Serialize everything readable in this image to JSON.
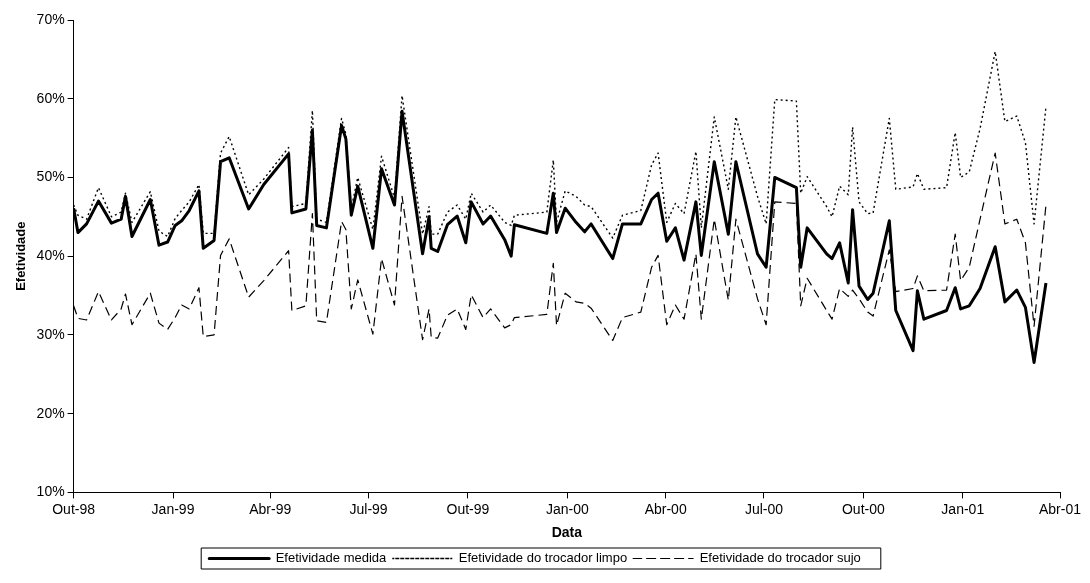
{
  "chart_data": {
    "type": "line",
    "xlabel": "Data",
    "ylabel": "Efetividade",
    "x": [
      "1998-10-01",
      "1998-10-05",
      "1998-10-13",
      "1998-10-24",
      "1998-11-05",
      "1998-11-14",
      "1998-11-18",
      "1998-11-24",
      "1998-12-11",
      "1998-12-19",
      "1998-12-27",
      "1999-01-03",
      "1999-01-09",
      "1999-01-16",
      "1999-01-25",
      "1999-01-29",
      "1999-02-08",
      "1999-02-14",
      "1999-02-22",
      "1999-03-12",
      "1999-03-26",
      "1999-04-18",
      "1999-04-21",
      "1999-05-04",
      "1999-05-10",
      "1999-05-14",
      "1999-05-23",
      "1999-06-06",
      "1999-06-10",
      "1999-06-15",
      "1999-06-21",
      "1999-07-05",
      "1999-07-13",
      "1999-07-25",
      "1999-08-01",
      "1999-08-20",
      "1999-08-26",
      "1999-08-28",
      "1999-09-03",
      "1999-09-12",
      "1999-09-21",
      "1999-09-29",
      "1999-10-04",
      "1999-10-15",
      "1999-10-22",
      "1999-11-04",
      "1999-11-10",
      "1999-11-13",
      "1999-12-13",
      "1999-12-19",
      "1999-12-22",
      "1999-12-30",
      "2000-01-09",
      "2000-01-17",
      "2000-01-23",
      "2000-02-12",
      "2000-02-21",
      "2000-03-09",
      "2000-03-19",
      "2000-03-25",
      "2000-04-02",
      "2000-04-10",
      "2000-04-18",
      "2000-04-29",
      "2000-05-04",
      "2000-05-16",
      "2000-05-29",
      "2000-06-05",
      "2000-06-25",
      "2000-07-03",
      "2000-07-11",
      "2000-07-31",
      "2000-08-04",
      "2000-08-10",
      "2000-08-28",
      "2000-09-02",
      "2000-09-09",
      "2000-09-17",
      "2000-09-21",
      "2000-09-27",
      "2000-10-05",
      "2000-10-10",
      "2000-10-25",
      "2000-10-31",
      "2000-11-16",
      "2000-11-20",
      "2000-11-26",
      "2000-12-17",
      "2000-12-25",
      "2000-12-30",
      "2001-01-07",
      "2001-01-17",
      "2001-01-31",
      "2001-02-09",
      "2001-02-20",
      "2001-02-28",
      "2001-03-08",
      "2001-03-19"
    ],
    "series": [
      {
        "name": "Efetividade medida",
        "color": "#000000",
        "line_style": "solid",
        "values": [
          46.1,
          43.0,
          44.1,
          47.0,
          44.2,
          44.7,
          47.6,
          42.5,
          47.2,
          41.4,
          41.8,
          43.9,
          44.5,
          45.8,
          48.3,
          41.0,
          42.0,
          52.0,
          52.5,
          46.0,
          49.1,
          53.0,
          45.5,
          46.0,
          56.0,
          43.9,
          43.6,
          56.6,
          54.9,
          45.2,
          48.9,
          41.0,
          51.1,
          46.5,
          58.4,
          40.3,
          45.0,
          41.0,
          40.6,
          44.0,
          45.1,
          41.7,
          46.9,
          44.1,
          45.1,
          42.1,
          40.0,
          44.0,
          42.9,
          48.0,
          43.0,
          46.1,
          44.3,
          43.1,
          44.1,
          39.7,
          44.1,
          44.1,
          47.2,
          48.0,
          41.9,
          43.6,
          39.5,
          46.9,
          40.1,
          52.0,
          42.8,
          52.0,
          40.3,
          38.6,
          50.0,
          48.7,
          38.6,
          43.6,
          40.3,
          39.7,
          41.7,
          36.6,
          45.9,
          36.2,
          34.5,
          35.3,
          44.5,
          33.1,
          28.0,
          35.6,
          32.0,
          33.1,
          36.0,
          33.3,
          33.7,
          35.9,
          41.2,
          34.2,
          35.7,
          33.5,
          26.5,
          36.6
        ]
      },
      {
        "name": "Efetividade do trocador limpo",
        "color": "#000000",
        "line_style": "dotted",
        "values": [
          46.5,
          45.2,
          44.7,
          48.7,
          45.0,
          45.6,
          48.0,
          44.3,
          48.2,
          43.2,
          42.5,
          44.8,
          45.8,
          46.9,
          49.1,
          42.9,
          42.9,
          53.1,
          55.2,
          47.8,
          49.8,
          53.8,
          46.3,
          46.7,
          58.5,
          44.7,
          44.3,
          57.5,
          55.5,
          46.1,
          50.0,
          43.4,
          52.7,
          47.4,
          60.4,
          42.8,
          46.3,
          42.8,
          42.8,
          45.6,
          46.5,
          44.7,
          48.0,
          45.6,
          46.5,
          44.3,
          43.9,
          45.2,
          45.6,
          52.2,
          44.3,
          48.3,
          47.6,
          46.5,
          46.3,
          42.3,
          45.2,
          45.8,
          51.6,
          53.1,
          44.3,
          46.7,
          45.4,
          53.3,
          43.6,
          57.7,
          48.5,
          57.7,
          47.6,
          44.1,
          59.9,
          59.7,
          48.0,
          50.1,
          46.3,
          45.0,
          48.9,
          47.8,
          56.4,
          46.9,
          45.4,
          45.5,
          57.5,
          48.5,
          48.8,
          50.5,
          48.5,
          48.7,
          55.7,
          50.0,
          50.7,
          56.2,
          66.0,
          57.1,
          57.8,
          54.4,
          44.1,
          59.0
        ]
      },
      {
        "name": "Efetividade do trocador sujo",
        "color": "#000000",
        "line_style": "dashed",
        "values": [
          33.7,
          32.1,
          31.9,
          35.5,
          31.9,
          33.3,
          35.2,
          31.3,
          35.3,
          31.5,
          30.7,
          32.2,
          33.8,
          33.3,
          36.0,
          29.8,
          30.0,
          40.1,
          42.2,
          34.8,
          36.9,
          40.7,
          33.1,
          33.7,
          45.4,
          31.8,
          31.6,
          44.4,
          43.4,
          33.3,
          37.0,
          30.1,
          39.7,
          33.8,
          47.6,
          29.4,
          33.3,
          29.7,
          29.6,
          32.5,
          33.3,
          30.7,
          35.1,
          32.2,
          33.3,
          30.9,
          31.3,
          32.2,
          32.6,
          39.1,
          31.2,
          35.3,
          34.2,
          34.0,
          33.4,
          29.3,
          32.2,
          32.9,
          38.6,
          40.1,
          31.3,
          33.8,
          32.0,
          40.3,
          32.0,
          44.7,
          34.4,
          44.7,
          34.6,
          31.3,
          46.9,
          46.7,
          33.7,
          37.2,
          33.1,
          32.0,
          35.9,
          34.9,
          35.7,
          34.6,
          32.9,
          32.4,
          40.8,
          35.5,
          35.9,
          37.5,
          35.6,
          35.7,
          42.8,
          36.9,
          38.6,
          44.7,
          53.1,
          44.1,
          44.7,
          41.7,
          31.1,
          46.5
        ]
      }
    ],
    "xlim": [
      "1998-10-01",
      "2001-04-01"
    ],
    "xticks": [
      {
        "value": "1998-10-01",
        "label": "Out-98"
      },
      {
        "value": "1999-01-01",
        "label": "Jan-99"
      },
      {
        "value": "1999-04-01",
        "label": "Abr-99"
      },
      {
        "value": "1999-07-01",
        "label": "Jul-99"
      },
      {
        "value": "1999-10-01",
        "label": "Out-99"
      },
      {
        "value": "2000-01-01",
        "label": "Jan-00"
      },
      {
        "value": "2000-04-01",
        "label": "Abr-00"
      },
      {
        "value": "2000-07-01",
        "label": "Jul-00"
      },
      {
        "value": "2000-10-01",
        "label": "Out-00"
      },
      {
        "value": "2001-01-01",
        "label": "Jan-01"
      },
      {
        "value": "2001-04-01",
        "label": "Abr-01"
      }
    ],
    "ylim": [
      10,
      70
    ],
    "yticks": [
      {
        "value": 10,
        "label": "10%"
      },
      {
        "value": 20,
        "label": "20%"
      },
      {
        "value": 30,
        "label": "30%"
      },
      {
        "value": 40,
        "label": "40%"
      },
      {
        "value": 50,
        "label": "50%"
      },
      {
        "value": 60,
        "label": "60%"
      },
      {
        "value": 70,
        "label": "70%"
      }
    ],
    "grid": false,
    "legend": "bottom",
    "marker": "none"
  }
}
